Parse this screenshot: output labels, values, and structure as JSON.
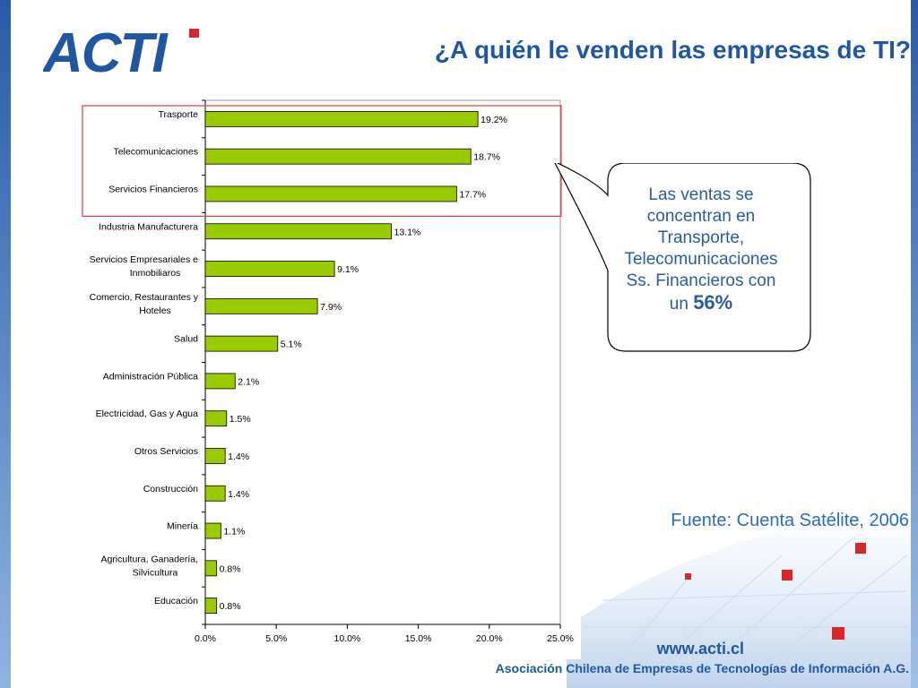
{
  "header": {
    "title": "¿A quién le venden las empresas de TI?",
    "logo_text": "ACTI"
  },
  "chart_data": {
    "type": "bar",
    "orientation": "horizontal",
    "categories": [
      "Trasporte",
      "Telecomunicaciones",
      "Servicios Financieros",
      "Industria Manufacturera",
      "Servicios Empresariales e Inmobiliaros",
      "Comercio, Restaurantes y Hoteles",
      "Salud",
      "Administración Pública",
      "Electricidad, Gas y Agua",
      "Otros Servicios",
      "Construcción",
      "Minería",
      "Agricultura, Ganadería, Silvicultura",
      "Educación"
    ],
    "values": [
      19.2,
      18.7,
      17.7,
      13.1,
      9.1,
      7.9,
      5.1,
      2.1,
      1.5,
      1.4,
      1.4,
      1.1,
      0.8,
      0.8
    ],
    "value_labels": [
      "19.2%",
      "18.7%",
      "17.7%",
      "13.1%",
      "9.1%",
      "7.9%",
      "5.1%",
      "2.1%",
      "1.5%",
      "1.4%",
      "1.4%",
      "1.1%",
      "0.8%",
      "0.8%"
    ],
    "xlim": [
      0,
      25
    ],
    "xticks": [
      0,
      5,
      10,
      15,
      20,
      25
    ],
    "xtick_labels": [
      "0.0%",
      "5.0%",
      "10.0%",
      "15.0%",
      "20.0%",
      "25.0%"
    ],
    "highlighted_categories": [
      "Trasporte",
      "Telecomunicaciones",
      "Servicios Financieros"
    ],
    "title": "",
    "xlabel": "",
    "ylabel": "",
    "grid": false,
    "legend": "none",
    "bar_color": "#99cc00",
    "highlight_color": "#e8383b"
  },
  "callout": {
    "lines": [
      "Las ventas se",
      "concentran en",
      "Transporte,",
      "Telecomunicaciones",
      "Ss. Financieros con"
    ],
    "prefix": "un",
    "highlight": "56%"
  },
  "source": "Fuente: Cuenta Satélite, 2006",
  "footer": {
    "url": "www.acti.cl",
    "org": "Asociación Chilena de Empresas de Tecnologías de Información A.G."
  },
  "colors": {
    "brand_blue": "#1f57a4",
    "accent_red": "#d9262a"
  }
}
